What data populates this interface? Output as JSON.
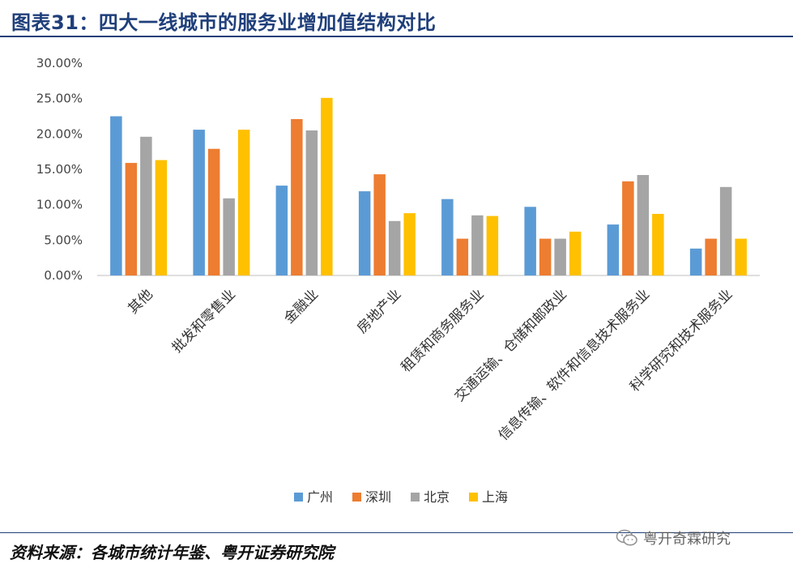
{
  "header": {
    "title": "图表31：四大一线城市的服务业增加值结构对比"
  },
  "footer": {
    "source": "资料来源：各城市统计年鉴、粤开证券研究院"
  },
  "watermark": {
    "text": "粤开奇霖研究",
    "icon": "wechat-icon"
  },
  "colors": {
    "title": "#1f3f7a",
    "guangzhou": "#5b9bd5",
    "shenzhen": "#ed7d31",
    "beijing": "#a5a5a5",
    "shanghai": "#ffc000"
  },
  "chart_data": {
    "type": "bar",
    "title": "",
    "xlabel": "",
    "ylabel": "",
    "ylim": [
      0,
      30
    ],
    "yticks": [
      "0.00%",
      "5.00%",
      "10.00%",
      "15.00%",
      "20.00%",
      "25.00%",
      "30.00%"
    ],
    "grid": false,
    "legend_position": "bottom",
    "categories": [
      "其他",
      "批发和零售业",
      "金融业",
      "房地产业",
      "租赁和商务服务业",
      "交通运输、仓储和邮政业",
      "信息传输、软件和信息技术服务业",
      "科学研究和技术服务业"
    ],
    "series": [
      {
        "name": "广州",
        "color": "#5b9bd5",
        "values": [
          22.5,
          20.6,
          12.7,
          11.9,
          10.8,
          9.7,
          7.2,
          3.8
        ]
      },
      {
        "name": "深圳",
        "color": "#ed7d31",
        "values": [
          15.9,
          17.9,
          22.1,
          14.3,
          5.2,
          5.2,
          13.3,
          5.2
        ]
      },
      {
        "name": "北京",
        "color": "#a5a5a5",
        "values": [
          19.6,
          10.9,
          20.5,
          7.7,
          8.5,
          5.2,
          14.2,
          12.5
        ]
      },
      {
        "name": "上海",
        "color": "#ffc000",
        "values": [
          16.3,
          20.6,
          25.1,
          8.8,
          8.4,
          6.2,
          8.7,
          5.2
        ]
      }
    ]
  }
}
